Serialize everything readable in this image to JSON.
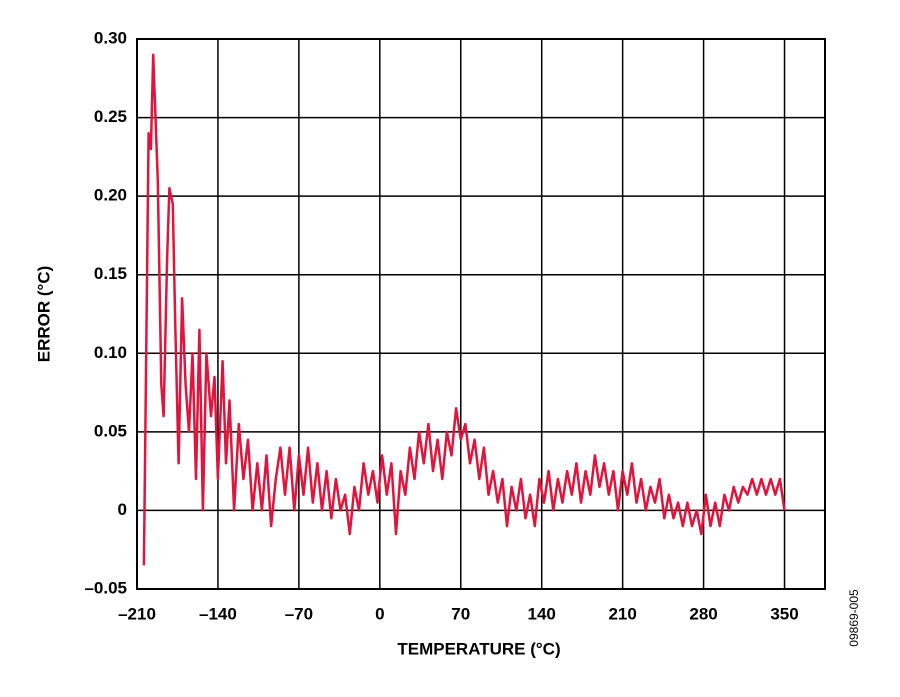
{
  "chart_data": {
    "type": "line",
    "x_label": "TEMPERATURE (°C)",
    "y_label": "ERROR (°C)",
    "annotation": "09869-005",
    "xlim": [
      -210,
      385
    ],
    "ylim": [
      -0.05,
      0.3
    ],
    "xticks": [
      {
        "value": -210,
        "label": "–210"
      },
      {
        "value": -140,
        "label": "–140"
      },
      {
        "value": -70,
        "label": "–70"
      },
      0,
      70,
      140,
      210,
      280,
      350
    ],
    "yticks": [
      {
        "value": -0.05,
        "label": "–0.05"
      },
      0,
      0.05,
      {
        "value": 0.1,
        "label": "0.10"
      },
      0.15,
      {
        "value": 0.2,
        "label": "0.20"
      },
      0.25,
      {
        "value": 0.3,
        "label": "0.30"
      }
    ],
    "grid": true,
    "x": [
      -204,
      -200,
      -198,
      -196,
      -194,
      -192,
      -189,
      -187,
      -184,
      -182,
      -179,
      -177,
      -174,
      -171,
      -168,
      -165,
      -162,
      -159,
      -156,
      -153,
      -150,
      -146,
      -143,
      -140,
      -136,
      -133,
      -130,
      -126,
      -122,
      -118,
      -114,
      -110,
      -106,
      -102,
      -98,
      -94,
      -90,
      -86,
      -82,
      -78,
      -74,
      -70,
      -66,
      -62,
      -58,
      -54,
      -50,
      -46,
      -42,
      -38,
      -34,
      -30,
      -26,
      -22,
      -18,
      -14,
      -10,
      -6,
      -2,
      2,
      6,
      10,
      14,
      18,
      22,
      26,
      30,
      34,
      38,
      42,
      46,
      50,
      54,
      58,
      62,
      66,
      70,
      74,
      78,
      82,
      86,
      90,
      94,
      98,
      102,
      106,
      110,
      114,
      118,
      122,
      126,
      130,
      134,
      138,
      142,
      146,
      150,
      154,
      158,
      162,
      166,
      170,
      174,
      178,
      182,
      186,
      190,
      194,
      198,
      202,
      206,
      210,
      214,
      218,
      222,
      226,
      230,
      234,
      238,
      242,
      246,
      250,
      254,
      258,
      262,
      266,
      270,
      274,
      278,
      282,
      286,
      290,
      294,
      298,
      302,
      306,
      310,
      314,
      318,
      322,
      326,
      330,
      334,
      338,
      342,
      346,
      350
    ],
    "series": [
      {
        "name": "error",
        "color": "#e0143c",
        "values": [
          -0.035,
          0.24,
          0.23,
          0.29,
          0.25,
          0.21,
          0.08,
          0.06,
          0.16,
          0.205,
          0.195,
          0.12,
          0.03,
          0.135,
          0.08,
          0.05,
          0.1,
          0.02,
          0.115,
          0.0,
          0.1,
          0.06,
          0.085,
          0.02,
          0.095,
          0.03,
          0.07,
          0.0,
          0.055,
          0.02,
          0.045,
          0.0,
          0.03,
          0.0,
          0.035,
          -0.01,
          0.02,
          0.04,
          0.01,
          0.04,
          0.0,
          0.035,
          0.01,
          0.04,
          0.005,
          0.03,
          0.0,
          0.025,
          -0.005,
          0.02,
          0.0,
          0.01,
          -0.015,
          0.015,
          0.0,
          0.03,
          0.01,
          0.025,
          0.005,
          0.035,
          0.01,
          0.03,
          -0.015,
          0.025,
          0.01,
          0.04,
          0.02,
          0.05,
          0.03,
          0.055,
          0.025,
          0.045,
          0.02,
          0.05,
          0.035,
          0.065,
          0.045,
          0.055,
          0.03,
          0.045,
          0.02,
          0.04,
          0.01,
          0.025,
          0.005,
          0.02,
          -0.01,
          0.015,
          0.0,
          0.02,
          -0.005,
          0.01,
          -0.01,
          0.02,
          0.005,
          0.025,
          0.0,
          0.02,
          0.005,
          0.025,
          0.01,
          0.03,
          0.005,
          0.025,
          0.01,
          0.035,
          0.015,
          0.03,
          0.01,
          0.025,
          0.0,
          0.025,
          0.01,
          0.03,
          0.005,
          0.02,
          0.0,
          0.015,
          0.005,
          0.02,
          -0.005,
          0.01,
          -0.005,
          0.005,
          -0.01,
          0.005,
          -0.01,
          0.0,
          -0.015,
          0.01,
          -0.01,
          0.005,
          -0.01,
          0.01,
          0.0,
          0.015,
          0.005,
          0.015,
          0.01,
          0.02,
          0.01,
          0.02,
          0.01,
          0.02,
          0.01,
          0.02,
          0.0
        ]
      }
    ]
  }
}
